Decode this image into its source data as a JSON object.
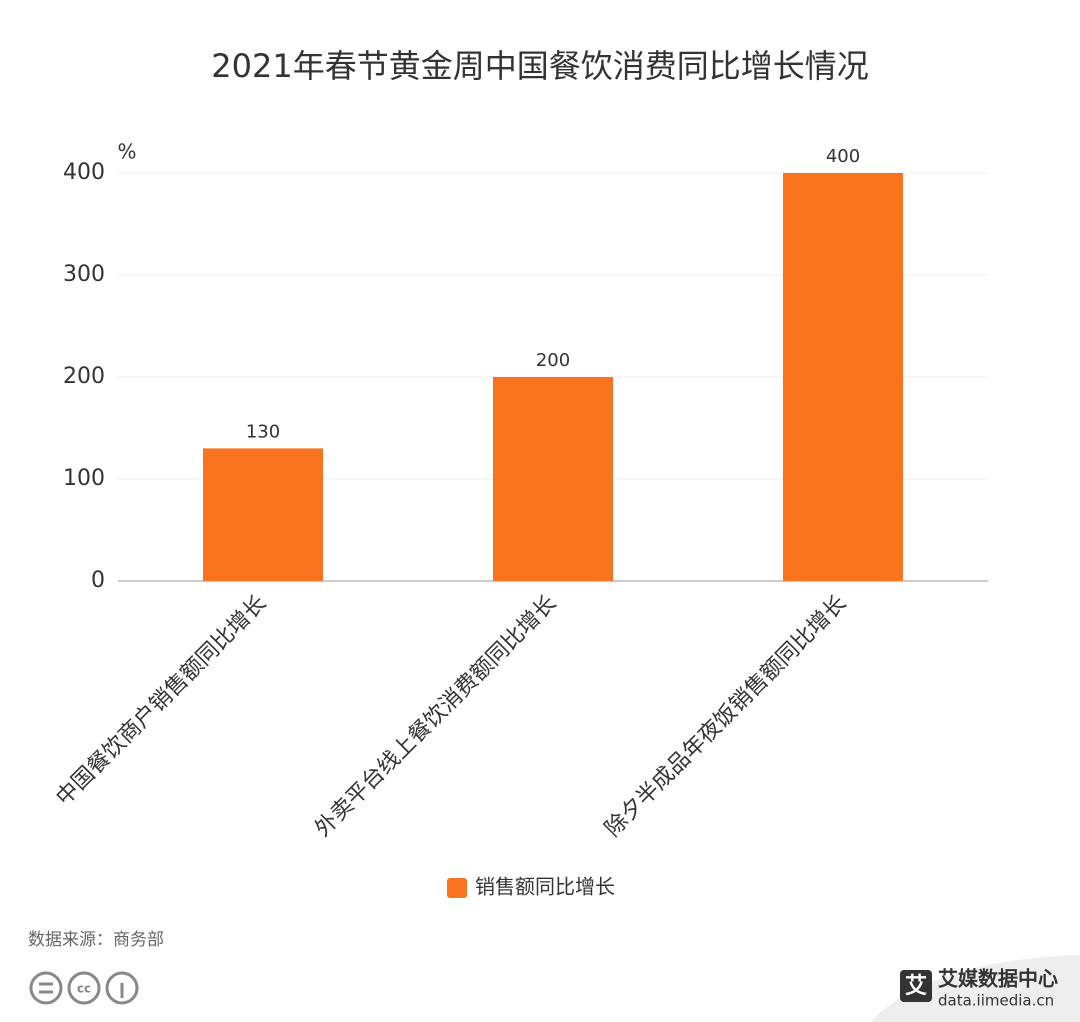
{
  "chart_data": {
    "type": "bar",
    "title": "2021年春节黄金周中国餐饮消费同比增长情况",
    "y_unit": "%",
    "categories": [
      "中国餐饮商户销售额同比增长",
      "外卖平台线上餐饮消费额同比增长",
      "除夕半成品年夜饭销售额同比增长"
    ],
    "series": [
      {
        "name": "销售额同比增长",
        "color": "#fa7420",
        "values": [
          130,
          200,
          400
        ]
      }
    ],
    "ylim": [
      0,
      400
    ],
    "yticks": [
      0,
      100,
      200,
      300,
      400
    ],
    "grid": true,
    "legend": "bottom"
  },
  "source": "数据来源：商务部",
  "watermark": {
    "logo": "艾",
    "brand": "艾媒数据中心",
    "url": "data.iimedia.cn"
  }
}
